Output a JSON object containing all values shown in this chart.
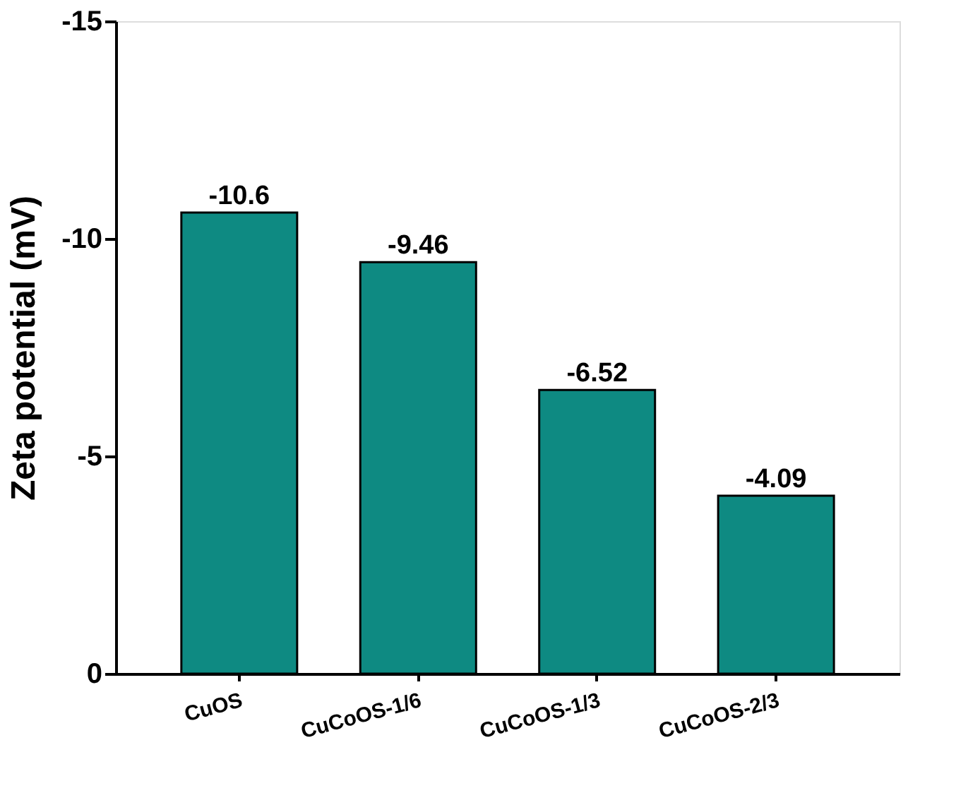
{
  "chart_data": {
    "type": "bar",
    "ylabel": "Zeta potential (mV)",
    "categories": [
      "CuOS",
      "CuCoOS-1/6",
      "CuCoOS-1/3",
      "CuCoOS-2/3"
    ],
    "values": [
      -10.6,
      -9.46,
      -6.52,
      -4.09
    ],
    "color": "#0e8a82",
    "ylim": [
      0,
      -15
    ],
    "yticks": [
      0,
      -5,
      -10,
      -15
    ],
    "data_labels": true,
    "grid": false
  }
}
